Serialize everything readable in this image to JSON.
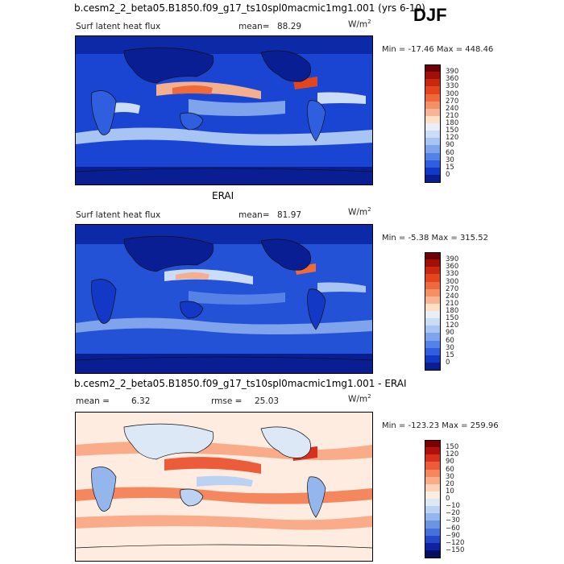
{
  "header": {
    "case_title": "b.cesm2_2_beta05.B1850.f09_g17_ts10spl0macmic1mg1.001 (yrs 6-10)",
    "season": "DJF"
  },
  "panel1": {
    "title": "Surf latent heat flux",
    "mean_label": "mean=",
    "mean_value": "88.29",
    "units_base": "W/m",
    "units_exp": "2",
    "minmax": "Min = -17.46 Max = 448.46",
    "colorbar_labels": [
      "390",
      "360",
      "330",
      "300",
      "270",
      "240",
      "210",
      "180",
      "150",
      "120",
      "90",
      "60",
      "30",
      "15",
      "0"
    ],
    "colorbar_colors": [
      "#6b0007",
      "#a01008",
      "#c8280e",
      "#e3461e",
      "#ee6a3e",
      "#f48f66",
      "#f8b595",
      "#fde0c6",
      "#e9edf7",
      "#cbdcf6",
      "#a8c4f2",
      "#7fa4ec",
      "#5482e6",
      "#2f5fde",
      "#1438c6",
      "#0a1e94"
    ]
  },
  "panel2": {
    "heading": "ERAI",
    "title": "Surf latent heat flux",
    "mean_label": "mean=",
    "mean_value": "81.97",
    "units_base": "W/m",
    "units_exp": "2",
    "minmax": "Min =  -5.38 Max = 315.52",
    "colorbar_labels": [
      "390",
      "360",
      "330",
      "300",
      "270",
      "240",
      "210",
      "180",
      "150",
      "120",
      "90",
      "60",
      "30",
      "15",
      "0"
    ],
    "colorbar_colors": [
      "#6b0007",
      "#a01008",
      "#c8280e",
      "#e3461e",
      "#ee6a3e",
      "#f48f66",
      "#f8b595",
      "#fde0c6",
      "#e9edf7",
      "#cbdcf6",
      "#a8c4f2",
      "#7fa4ec",
      "#5482e6",
      "#2f5fde",
      "#1438c6",
      "#0a1e94"
    ]
  },
  "panel3": {
    "heading": "b.cesm2_2_beta05.B1850.f09_g17_ts10spl0macmic1mg1.001 - ERAI",
    "mean_label": "mean =",
    "mean_value": "6.32",
    "rmse_label": "rmse =",
    "rmse_value": "25.03",
    "units_base": "W/m",
    "units_exp": "2",
    "minmax": "Min = -123.23 Max = 259.96",
    "colorbar_labels": [
      "150",
      "120",
      "90",
      "60",
      "30",
      "20",
      "10",
      "0",
      "−10",
      "−20",
      "−30",
      "−60",
      "−90",
      "−120",
      "−150"
    ],
    "colorbar_colors": [
      "#7a0004",
      "#b0110a",
      "#d7301f",
      "#ec5b3a",
      "#f5875f",
      "#f9ab8a",
      "#fcd2bb",
      "#fdecdf",
      "#dde8f7",
      "#bcd2f2",
      "#95b6ec",
      "#6d93e3",
      "#4670da",
      "#2448c8",
      "#0e23a0",
      "#04105f"
    ]
  }
}
